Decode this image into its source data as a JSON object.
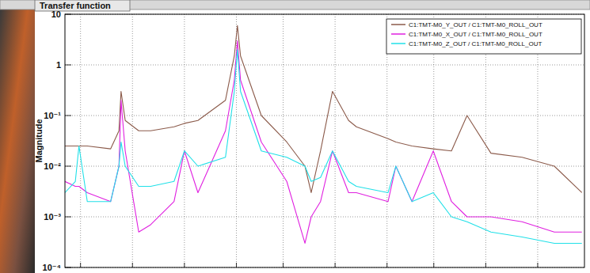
{
  "chart_data": {
    "type": "line",
    "title": "Transfer function",
    "y_label": "Magnitude",
    "log": "y",
    "grid": true,
    "legend": "top-right",
    "tick_labels": "y",
    "xlim": [
      0,
      100
    ],
    "xticks": [
      3,
      13,
      23,
      33,
      42,
      52,
      62,
      71,
      81,
      91
    ],
    "ylim": [
      0.0001,
      10
    ],
    "yticks": [
      {
        "value": 0.0001,
        "label": "10⁻⁴"
      },
      {
        "value": 0.001,
        "label": "10⁻³"
      },
      {
        "value": 0.01,
        "label": "10⁻²"
      },
      {
        "value": 0.1,
        "label": "10⁻¹"
      },
      1,
      10
    ],
    "x": [
      0,
      2,
      2.7,
      4.3,
      8.8,
      10.4,
      10.8,
      11.6,
      14.2,
      16.5,
      21,
      23,
      25.6,
      30.9,
      32.6,
      33.2,
      33.8,
      37.8,
      42.7,
      46.2,
      47.4,
      49.2,
      51.5,
      54.6,
      56.1,
      62.2,
      63.7,
      66.8,
      70.9,
      74.4,
      77.4,
      82,
      88,
      94.2,
      99.5
    ],
    "series": [
      {
        "name": "C1:TMT-M0_Y_OUT / C1:TMT-M0_ROLL_OUT",
        "color": "#8b5a4a",
        "values": [
          0.025,
          0.025,
          0.025,
          0.025,
          0.022,
          0.05,
          0.3,
          0.08,
          0.05,
          0.05,
          0.06,
          0.07,
          0.08,
          0.2,
          1.5,
          6,
          1.5,
          0.1,
          0.03,
          0.01,
          0.003,
          0.02,
          0.3,
          0.08,
          0.06,
          0.035,
          0.03,
          0.025,
          0.022,
          0.02,
          0.1,
          0.018,
          0.015,
          0.01,
          0.003
        ]
      },
      {
        "name": "C1:TMT-M0_X_OUT / C1:TMT-M0_ROLL_OUT",
        "color": "#e020e0",
        "values": [
          0.005,
          0.004,
          0.004,
          0.003,
          0.002,
          0.01,
          0.2,
          0.02,
          0.0005,
          0.0007,
          0.002,
          0.02,
          0.003,
          0.05,
          0.5,
          3,
          0.5,
          0.03,
          0.005,
          0.0003,
          0.001,
          0.002,
          0.02,
          0.003,
          0.003,
          0.002,
          0.01,
          0.002,
          0.02,
          0.002,
          0.001,
          0.001,
          0.0008,
          0.0005,
          0.0005
        ]
      },
      {
        "name": "C1:TMT-M0_Z_OUT / C1:TMT-M0_ROLL_OUT",
        "color": "#20e0e8",
        "values": [
          0.003,
          0.005,
          0.025,
          0.002,
          0.002,
          0.01,
          0.03,
          0.01,
          0.004,
          0.004,
          0.005,
          0.02,
          0.01,
          0.015,
          0.3,
          2,
          0.3,
          0.02,
          0.015,
          0.01,
          0.005,
          0.006,
          0.02,
          0.005,
          0.004,
          0.003,
          0.01,
          0.002,
          0.003,
          0.001,
          0.0008,
          0.0005,
          0.0004,
          0.0003,
          0.0003
        ]
      }
    ]
  }
}
